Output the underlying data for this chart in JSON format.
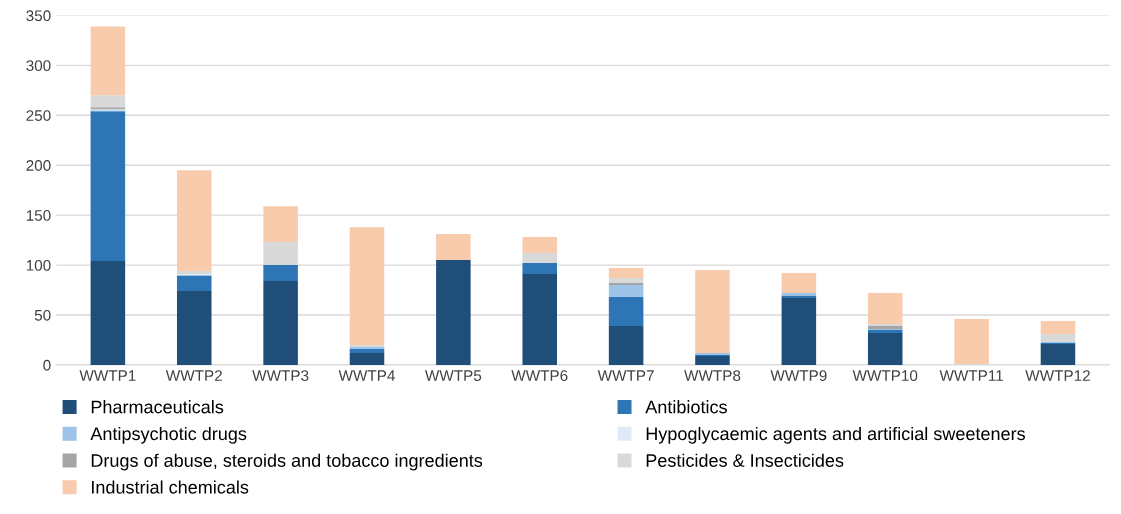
{
  "chart_data": {
    "type": "bar",
    "stacked": true,
    "categories": [
      "WWTP1",
      "WWTP2",
      "WWTP3",
      "WWTP4",
      "WWTP5",
      "WWTP6",
      "WWTP7",
      "WWTP8",
      "WWTP9",
      "WWTP10",
      "WWTP11",
      "WWTP12"
    ],
    "series": [
      {
        "name": "Pharmaceuticals",
        "color": "#1f4e79",
        "values": [
          104,
          74,
          84,
          12,
          105,
          91,
          39,
          9,
          67,
          32,
          0,
          21
        ]
      },
      {
        "name": "Antibiotics",
        "color": "#2e75b6",
        "values": [
          150,
          15,
          16,
          4,
          0,
          11,
          29,
          1,
          2,
          3,
          0,
          1
        ]
      },
      {
        "name": "Antipsychotic drugs",
        "color": "#9dc3e6",
        "values": [
          1,
          1,
          0,
          2,
          0,
          0,
          12,
          2,
          3,
          1,
          0,
          1
        ]
      },
      {
        "name": "Hypoglycaemic agents and artificial sweeteners",
        "color": "#deebf7",
        "values": [
          1,
          1,
          0,
          null,
          0,
          0,
          null,
          null,
          null,
          0,
          0,
          0
        ]
      },
      {
        "name": "Drugs of abuse, steroids and tobacco ingredients",
        "color": "#a5a5a5",
        "values": [
          2,
          0,
          0,
          0,
          0,
          0,
          2,
          0,
          0,
          3,
          0,
          0
        ]
      },
      {
        "name": "Pesticides & Insecticides",
        "color": "#d9d9d9",
        "values": [
          12,
          3,
          23,
          2,
          0,
          10,
          5,
          0,
          0,
          2,
          1,
          8
        ]
      },
      {
        "name": "Industrial chemicals",
        "color": "#f8cbad",
        "values": [
          69,
          101,
          36,
          118,
          26,
          16,
          10,
          83,
          20,
          31,
          45,
          13
        ]
      }
    ],
    "ylim": [
      0,
      350
    ],
    "yticks": [
      0,
      50,
      100,
      150,
      200,
      250,
      300,
      350
    ],
    "grid": "y",
    "legend": "bottom"
  }
}
